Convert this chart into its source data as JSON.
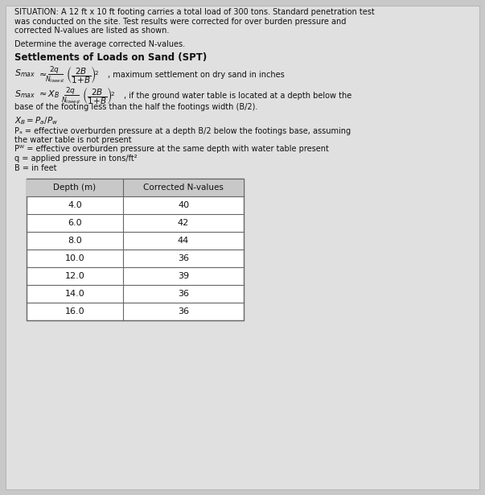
{
  "bg_color": "#c8c8c8",
  "panel_color": "#e0e0e0",
  "situation_text": "SITUATION: A 12 ft x 10 ft footing carries a total load of 300 tons. Standard penetration test\nwas conducted on the site. Test results were corrected for over burden pressure and\ncorrected N-values are listed as shown.",
  "determine_text": "Determine the average corrected N-values.",
  "section_title": "Settlements of Loads on Sand (SPT)",
  "xb_formula": "Xᴮ = Pₐ/Pᵂ",
  "pa_line1": "Pₐ = effective overburden pressure at a depth B/2 below the footings base, assuming",
  "pa_line2": "the water table is not present",
  "pw_text": "Pᵂ = effective overburden pressure at the same depth with water table present",
  "q_text": "q = applied pressure in tons/ft²",
  "b_text": "B = in feet",
  "table_header": [
    "Depth (m)",
    "Corrected N-values"
  ],
  "table_data": [
    [
      "4.0",
      "40"
    ],
    [
      "6.0",
      "42"
    ],
    [
      "8.0",
      "44"
    ],
    [
      "10.0",
      "36"
    ],
    [
      "12.0",
      "39"
    ],
    [
      "14.0",
      "36"
    ],
    [
      "16.0",
      "36"
    ]
  ],
  "text_color": "#111111",
  "table_border": "#666666",
  "table_header_bg": "#c8c8c8",
  "table_row_bg": "#e8e8e8",
  "figwidth": 6.03,
  "figheight": 6.15,
  "dpi": 100
}
